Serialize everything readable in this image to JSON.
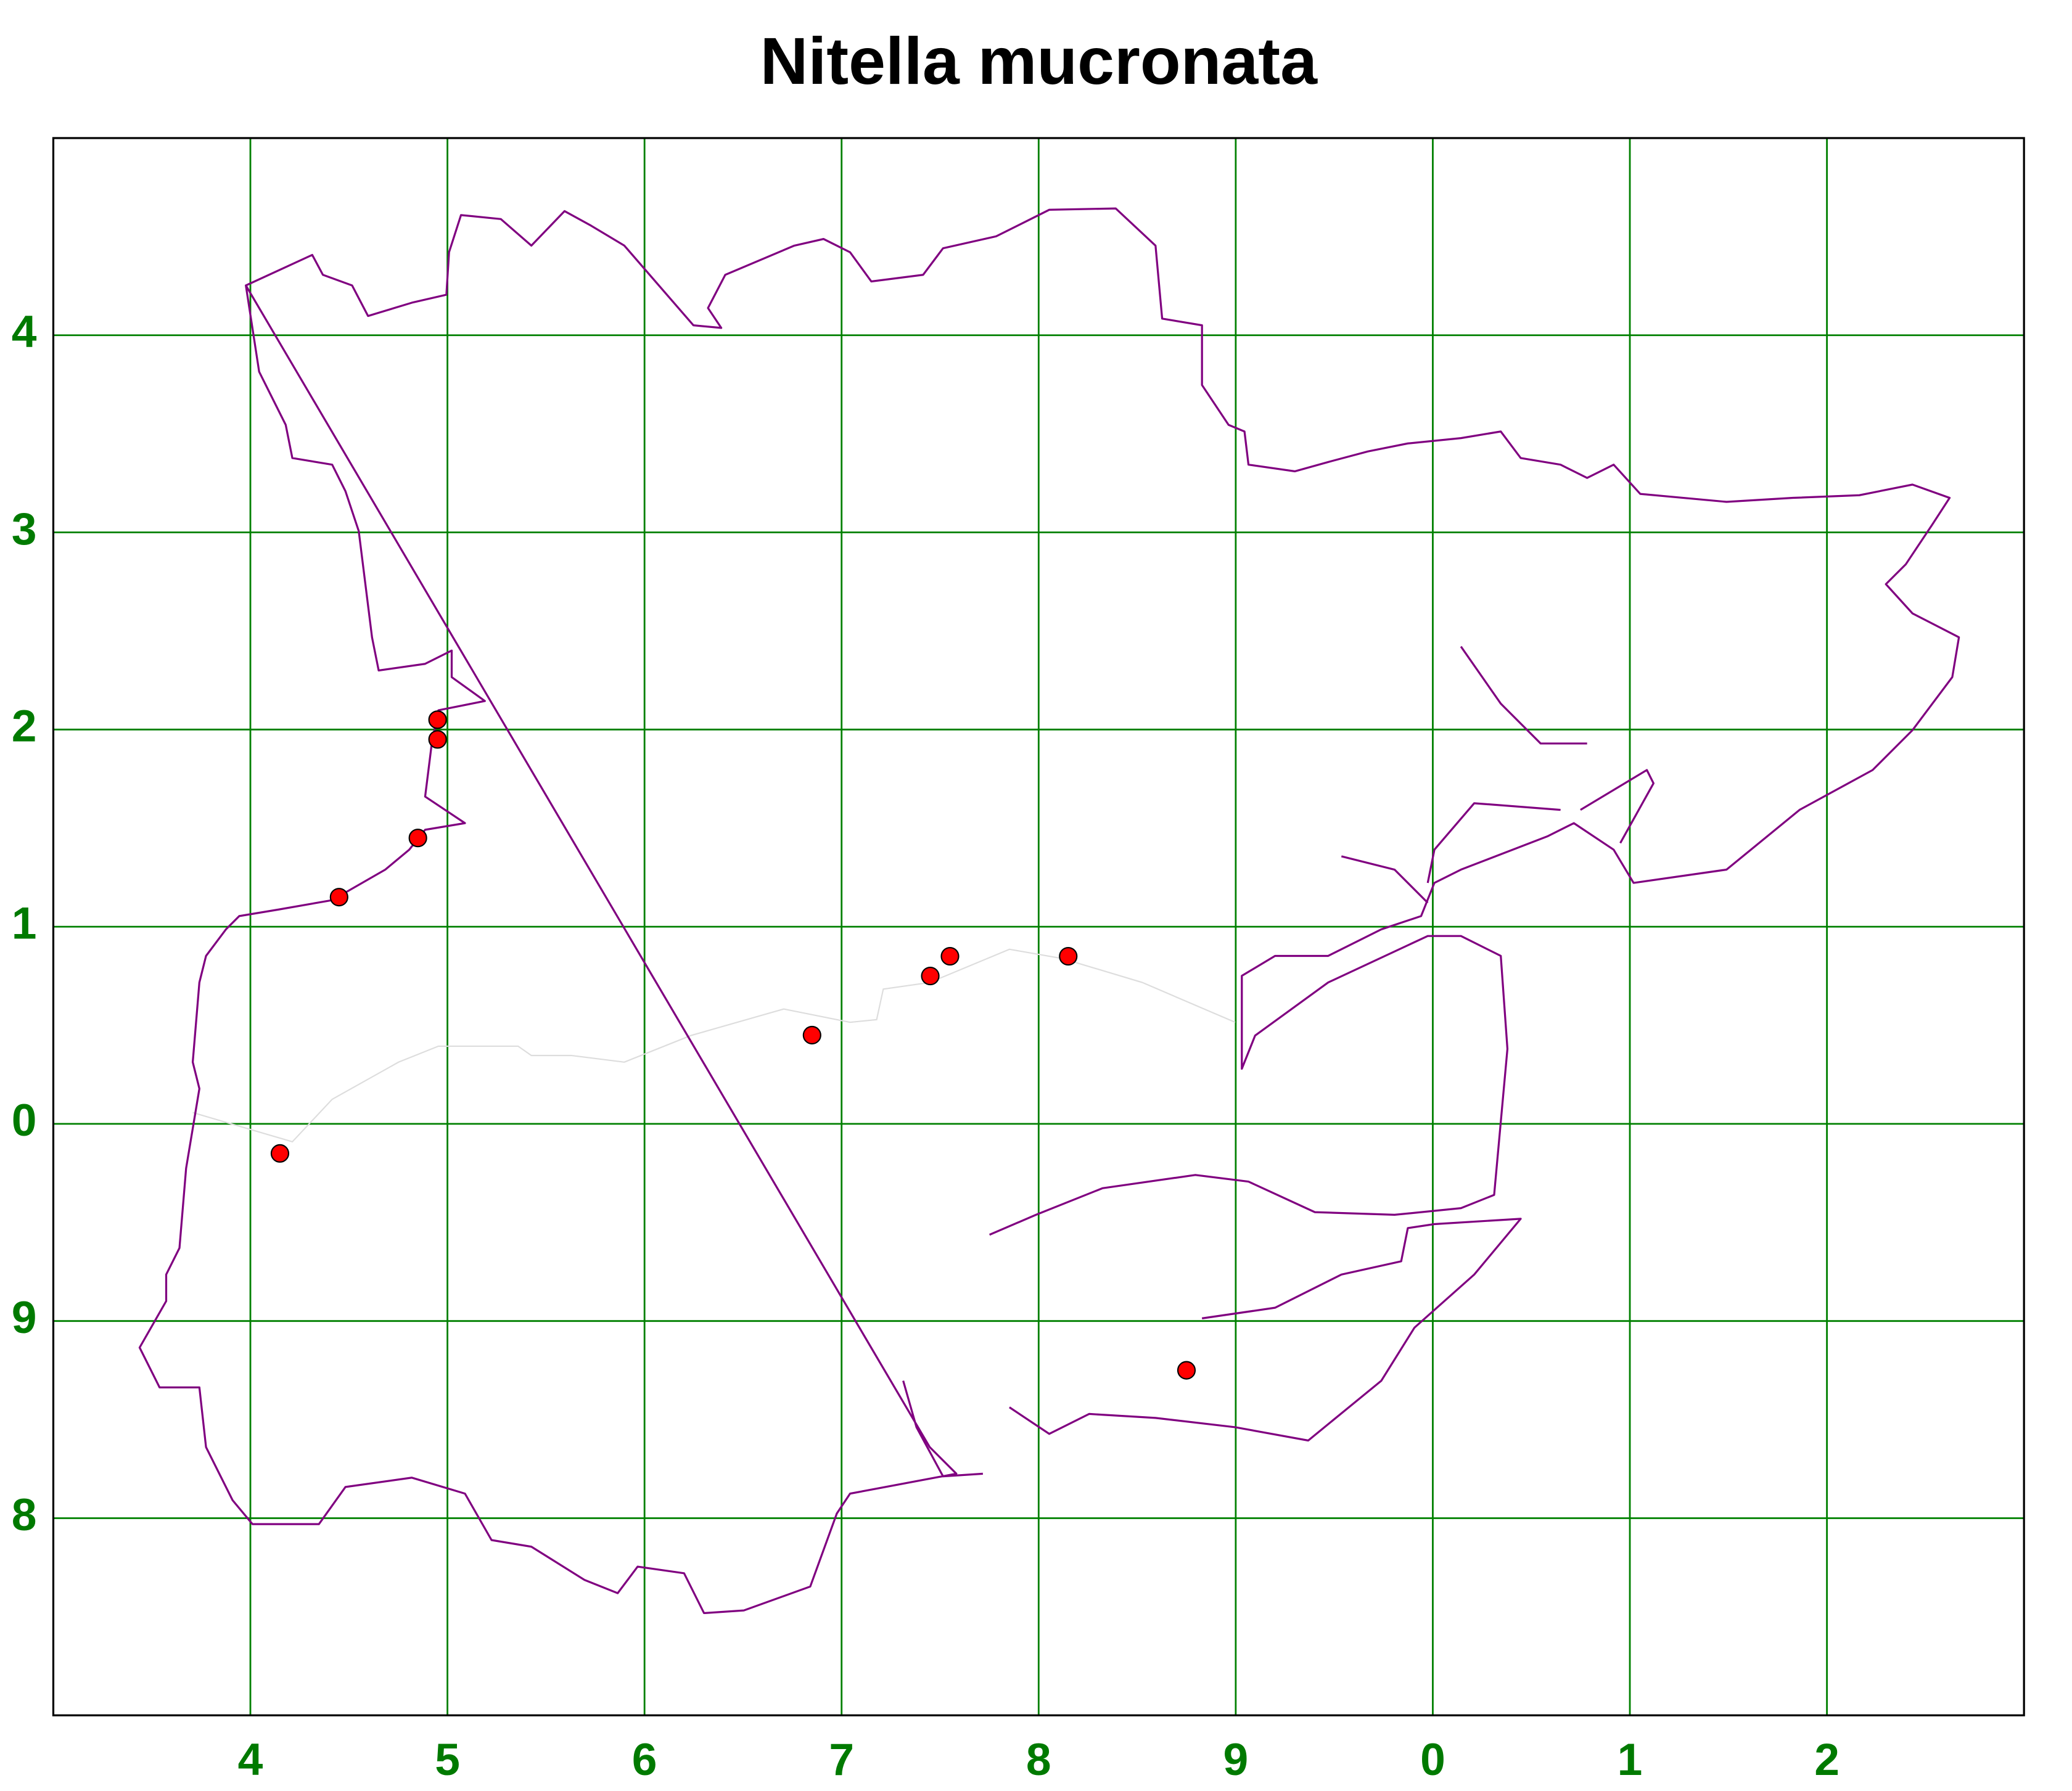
{
  "chart_data": {
    "type": "scatter",
    "title": "Nitella mucronata",
    "x": [
      4.95,
      4.95,
      4.85,
      4.45,
      4.15,
      6.85,
      7.45,
      7.55,
      8.15,
      8.75
    ],
    "values": [
      2.05,
      1.95,
      1.45,
      1.15,
      -0.15,
      0.45,
      0.75,
      0.85,
      0.85,
      -1.25
    ],
    "color": "#ff0000",
    "xlim": [
      3,
      13
    ],
    "ylim": [
      -3,
      5
    ],
    "xticks": [
      4,
      5,
      6,
      7,
      8,
      9,
      {
        "value": 10,
        "label": "0"
      },
      {
        "value": 11,
        "label": "1"
      },
      {
        "value": 12,
        "label": "2"
      }
    ],
    "yticks": [
      {
        "value": -2,
        "label": "8"
      },
      {
        "value": -1,
        "label": "9"
      },
      0,
      1,
      2,
      3,
      4
    ],
    "grid": true,
    "grid_color": "#008000"
  }
}
